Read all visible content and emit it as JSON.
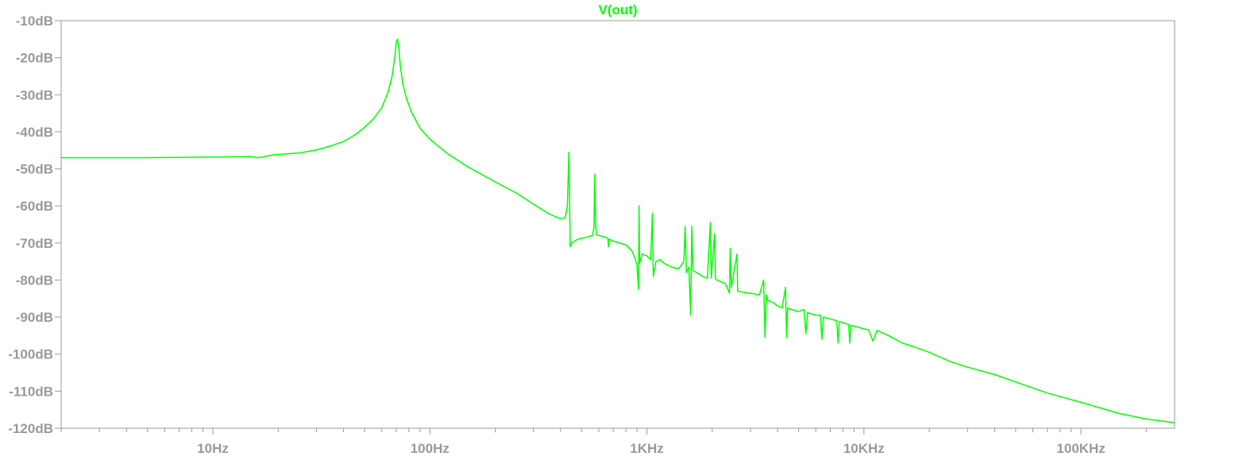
{
  "colors": {
    "trace": "#00ff00",
    "axis": "#999999",
    "tick_label": "#999999",
    "background": "#ffffff"
  },
  "chart_data": {
    "type": "line",
    "title": "V(out)",
    "xlabel": "",
    "ylabel": "",
    "x_scale": "log",
    "xlim": [
      2,
      270000
    ],
    "ylim": [
      -120,
      -10
    ],
    "grid": false,
    "y_ticks": [
      {
        "value": -10,
        "label": "-10dB"
      },
      {
        "value": -20,
        "label": "-20dB"
      },
      {
        "value": -30,
        "label": "-30dB"
      },
      {
        "value": -40,
        "label": "-40dB"
      },
      {
        "value": -50,
        "label": "-50dB"
      },
      {
        "value": -60,
        "label": "-60dB"
      },
      {
        "value": -70,
        "label": "-70dB"
      },
      {
        "value": -80,
        "label": "-80dB"
      },
      {
        "value": -90,
        "label": "-90dB"
      },
      {
        "value": -100,
        "label": "-100dB"
      },
      {
        "value": -110,
        "label": "-110dB"
      },
      {
        "value": -120,
        "label": "-120dB"
      }
    ],
    "x_ticks": [
      {
        "value": 10,
        "label": "10Hz"
      },
      {
        "value": 100,
        "label": "100Hz"
      },
      {
        "value": 1000,
        "label": "1KHz"
      },
      {
        "value": 10000,
        "label": "10KHz"
      },
      {
        "value": 100000,
        "label": "100KHz"
      }
    ],
    "series": [
      {
        "name": "V(out)",
        "color": "#00ff00",
        "points": [
          [
            2,
            -47.0
          ],
          [
            5,
            -47.0
          ],
          [
            10,
            -46.8
          ],
          [
            15,
            -46.7
          ],
          [
            16,
            -47.0
          ],
          [
            17,
            -46.8
          ],
          [
            19,
            -46.2
          ],
          [
            25,
            -45.7
          ],
          [
            30,
            -44.9
          ],
          [
            35,
            -43.8
          ],
          [
            40,
            -42.6
          ],
          [
            45,
            -40.9
          ],
          [
            50,
            -38.8
          ],
          [
            55,
            -36.5
          ],
          [
            60,
            -33.5
          ],
          [
            64,
            -29.5
          ],
          [
            67,
            -25.0
          ],
          [
            69,
            -19.5
          ],
          [
            70,
            -15.5
          ],
          [
            71,
            -15.0
          ],
          [
            72,
            -17.5
          ],
          [
            73,
            -22.0
          ],
          [
            75,
            -27.0
          ],
          [
            78,
            -31.0
          ],
          [
            82,
            -34.5
          ],
          [
            90,
            -39.0
          ],
          [
            100,
            -42.0
          ],
          [
            120,
            -45.8
          ],
          [
            150,
            -49.5
          ],
          [
            200,
            -53.5
          ],
          [
            250,
            -56.5
          ],
          [
            300,
            -59.5
          ],
          [
            350,
            -62.0
          ],
          [
            400,
            -63.5
          ],
          [
            420,
            -63.2
          ],
          [
            430,
            -60.0
          ],
          [
            437,
            -45.5
          ],
          [
            440,
            -56.0
          ],
          [
            443,
            -71.0
          ],
          [
            450,
            -70.0
          ],
          [
            480,
            -69.0
          ],
          [
            520,
            -68.5
          ],
          [
            560,
            -68.0
          ],
          [
            570,
            -66.0
          ],
          [
            575,
            -51.5
          ],
          [
            580,
            -64.5
          ],
          [
            585,
            -67.8
          ],
          [
            620,
            -68.2
          ],
          [
            660,
            -68.6
          ],
          [
            665,
            -71.0
          ],
          [
            670,
            -69.0
          ],
          [
            700,
            -69.5
          ],
          [
            800,
            -70.5
          ],
          [
            850,
            -72.0
          ],
          [
            880,
            -74.0
          ],
          [
            900,
            -76.0
          ],
          [
            915,
            -82.5
          ],
          [
            920,
            -60.0
          ],
          [
            925,
            -75.5
          ],
          [
            950,
            -73.0
          ],
          [
            1000,
            -73.5
          ],
          [
            1040,
            -74.5
          ],
          [
            1060,
            -62.0
          ],
          [
            1070,
            -79.0
          ],
          [
            1100,
            -75.0
          ],
          [
            1150,
            -74.5
          ],
          [
            1200,
            -75.5
          ],
          [
            1300,
            -76.5
          ],
          [
            1400,
            -77.0
          ],
          [
            1480,
            -75.0
          ],
          [
            1500,
            -65.5
          ],
          [
            1520,
            -78.0
          ],
          [
            1560,
            -76.5
          ],
          [
            1590,
            -89.5
          ],
          [
            1610,
            -65.5
          ],
          [
            1630,
            -77.5
          ],
          [
            1700,
            -78.0
          ],
          [
            1800,
            -79.0
          ],
          [
            1900,
            -79.5
          ],
          [
            1960,
            -64.5
          ],
          [
            1980,
            -79.5
          ],
          [
            2050,
            -67.5
          ],
          [
            2070,
            -79.8
          ],
          [
            2200,
            -80.5
          ],
          [
            2300,
            -81.0
          ],
          [
            2400,
            -83.5
          ],
          [
            2420,
            -71.5
          ],
          [
            2450,
            -82.0
          ],
          [
            2600,
            -73.0
          ],
          [
            2620,
            -83.0
          ],
          [
            2900,
            -83.5
          ],
          [
            3100,
            -83.7
          ],
          [
            3300,
            -84.0
          ],
          [
            3450,
            -80.0
          ],
          [
            3500,
            -95.5
          ],
          [
            3550,
            -84.0
          ],
          [
            3600,
            -85.5
          ],
          [
            3800,
            -86.0
          ],
          [
            4000,
            -87.0
          ],
          [
            4200,
            -87.5
          ],
          [
            4350,
            -82.0
          ],
          [
            4400,
            -95.5
          ],
          [
            4450,
            -87.6
          ],
          [
            5000,
            -88.5
          ],
          [
            5300,
            -88.0
          ],
          [
            5400,
            -94.5
          ],
          [
            5500,
            -88.8
          ],
          [
            6000,
            -89.5
          ],
          [
            6300,
            -89.5
          ],
          [
            6400,
            -96.0
          ],
          [
            6500,
            -90.0
          ],
          [
            7000,
            -90.5
          ],
          [
            7500,
            -91.0
          ],
          [
            7600,
            -97.0
          ],
          [
            7700,
            -91.2
          ],
          [
            8500,
            -92.0
          ],
          [
            8600,
            -97.0
          ],
          [
            8700,
            -92.2
          ],
          [
            9500,
            -92.8
          ],
          [
            10000,
            -93.2
          ],
          [
            10500,
            -93.4
          ],
          [
            11000,
            -96.5
          ],
          [
            11500,
            -93.6
          ],
          [
            13000,
            -95.0
          ],
          [
            15000,
            -97.0
          ],
          [
            17000,
            -98.0
          ],
          [
            20000,
            -99.5
          ],
          [
            25000,
            -102.0
          ],
          [
            30000,
            -103.5
          ],
          [
            40000,
            -105.5
          ],
          [
            50000,
            -107.5
          ],
          [
            70000,
            -110.5
          ],
          [
            100000,
            -113.0
          ],
          [
            150000,
            -116.0
          ],
          [
            200000,
            -117.5
          ],
          [
            270000,
            -118.5
          ]
        ]
      }
    ]
  }
}
